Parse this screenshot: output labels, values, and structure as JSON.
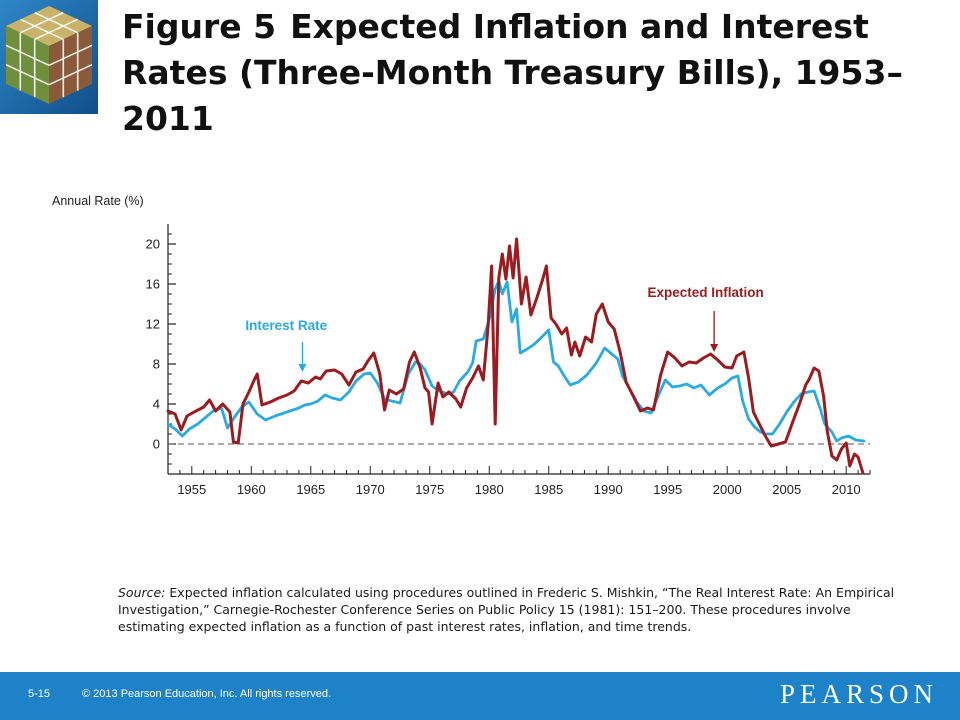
{
  "slide": {
    "title_number": "Figure 5",
    "title_text": "Expected Inflation and Interest Rates (Three-Month Treasury Bills), 1953–2011",
    "source_label": "Source:",
    "source_text": "Expected inflation calculated using procedures outlined in Frederic S. Mishkin, “The Real Interest Rate: An Empirical Investigation,” Carnegie-Rochester Conference Series on Public Policy 15 (1981): 151–200. These procedures involve estimating expected inflation as a function of past interest rates, inflation, and time trends.",
    "slide_number": "5-15",
    "copyright": "© 2013 Pearson Education, Inc. All rights reserved.",
    "brand": "PEARSON"
  },
  "colors": {
    "interest_rate": "#29abe2",
    "expected_inflation": "#9b1b1f",
    "footer": "#1e82c8",
    "axis": "#222222"
  },
  "chart_data": {
    "type": "line",
    "ylabel": "Annual Rate (%)",
    "ylim": [
      -3,
      22
    ],
    "yticks": [
      0,
      4,
      8,
      12,
      16,
      20
    ],
    "xlim": [
      1953,
      2012
    ],
    "xticks": [
      1955,
      1960,
      1965,
      1970,
      1975,
      1980,
      1985,
      1990,
      1995,
      2000,
      2005,
      2010
    ],
    "grid": false,
    "zero_line": "dashed",
    "series": [
      {
        "name": "Interest Rate",
        "color": "#29abe2",
        "label_pos": [
          1959.5,
          11.4
        ],
        "arrow_from": [
          1964.3,
          10.2
        ],
        "arrow_to": [
          1964.3,
          7.2
        ],
        "points": [
          [
            1953.0,
            2.0
          ],
          [
            1953.6,
            1.5
          ],
          [
            1954.2,
            0.8
          ],
          [
            1954.8,
            1.5
          ],
          [
            1955.5,
            2.0
          ],
          [
            1956.2,
            2.7
          ],
          [
            1956.8,
            3.3
          ],
          [
            1957.5,
            3.6
          ],
          [
            1958.0,
            1.6
          ],
          [
            1958.6,
            2.7
          ],
          [
            1959.2,
            3.7
          ],
          [
            1959.8,
            4.2
          ],
          [
            1960.5,
            3.0
          ],
          [
            1961.2,
            2.4
          ],
          [
            1962.0,
            2.8
          ],
          [
            1963.0,
            3.2
          ],
          [
            1964.0,
            3.6
          ],
          [
            1964.5,
            3.9
          ],
          [
            1965.0,
            4.0
          ],
          [
            1965.6,
            4.3
          ],
          [
            1966.2,
            4.9
          ],
          [
            1966.8,
            4.6
          ],
          [
            1967.5,
            4.4
          ],
          [
            1968.2,
            5.2
          ],
          [
            1968.8,
            6.3
          ],
          [
            1969.5,
            7.0
          ],
          [
            1970.0,
            7.1
          ],
          [
            1970.6,
            6.1
          ],
          [
            1971.2,
            4.5
          ],
          [
            1971.8,
            4.3
          ],
          [
            1972.5,
            4.1
          ],
          [
            1973.2,
            7.0
          ],
          [
            1973.8,
            8.2
          ],
          [
            1974.2,
            8.0
          ],
          [
            1974.6,
            7.4
          ],
          [
            1975.2,
            5.8
          ],
          [
            1975.8,
            5.3
          ],
          [
            1976.5,
            5.0
          ],
          [
            1977.0,
            5.2
          ],
          [
            1977.5,
            6.3
          ],
          [
            1978.2,
            7.2
          ],
          [
            1978.6,
            8.1
          ],
          [
            1978.9,
            10.3
          ],
          [
            1979.5,
            10.5
          ],
          [
            1980.0,
            12.5
          ],
          [
            1980.5,
            15.5
          ],
          [
            1980.8,
            16.3
          ],
          [
            1981.1,
            15.0
          ],
          [
            1981.5,
            16.2
          ],
          [
            1981.9,
            12.2
          ],
          [
            1982.3,
            13.5
          ],
          [
            1982.6,
            9.1
          ],
          [
            1983.2,
            9.5
          ],
          [
            1983.8,
            10.0
          ],
          [
            1984.5,
            10.8
          ],
          [
            1985.0,
            11.4
          ],
          [
            1985.4,
            8.2
          ],
          [
            1985.8,
            7.8
          ],
          [
            1986.3,
            6.8
          ],
          [
            1986.8,
            5.9
          ],
          [
            1987.5,
            6.2
          ],
          [
            1988.2,
            6.9
          ],
          [
            1989.0,
            8.1
          ],
          [
            1989.7,
            9.6
          ],
          [
            1990.3,
            9.0
          ],
          [
            1990.8,
            8.5
          ],
          [
            1991.2,
            6.8
          ],
          [
            1991.8,
            5.5
          ],
          [
            1992.4,
            4.2
          ],
          [
            1993.0,
            3.3
          ],
          [
            1993.6,
            3.1
          ],
          [
            1994.2,
            4.8
          ],
          [
            1994.8,
            6.4
          ],
          [
            1995.4,
            5.7
          ],
          [
            1996.0,
            5.8
          ],
          [
            1996.6,
            6.0
          ],
          [
            1997.2,
            5.6
          ],
          [
            1997.8,
            5.9
          ],
          [
            1998.5,
            4.9
          ],
          [
            1999.2,
            5.6
          ],
          [
            1999.8,
            6.0
          ],
          [
            2000.4,
            6.6
          ],
          [
            2000.9,
            6.8
          ],
          [
            2001.3,
            4.3
          ],
          [
            2001.8,
            2.5
          ],
          [
            2002.3,
            1.7
          ],
          [
            2002.8,
            1.2
          ],
          [
            2003.2,
            1.0
          ],
          [
            2003.8,
            1.0
          ],
          [
            2004.4,
            2.0
          ],
          [
            2005.0,
            3.2
          ],
          [
            2005.6,
            4.2
          ],
          [
            2006.2,
            5.0
          ],
          [
            2006.8,
            5.2
          ],
          [
            2007.3,
            5.3
          ],
          [
            2007.8,
            3.6
          ],
          [
            2008.2,
            2.0
          ],
          [
            2008.8,
            1.2
          ],
          [
            2009.2,
            0.3
          ],
          [
            2009.6,
            0.6
          ],
          [
            2010.2,
            0.8
          ],
          [
            2010.8,
            0.4
          ],
          [
            2011.5,
            0.3
          ]
        ]
      },
      {
        "name": "Expected Inflation",
        "color": "#9b1b1f",
        "label_pos": [
          1993.3,
          14.7
        ],
        "arrow_from": [
          1998.9,
          13.3
        ],
        "arrow_to": [
          1998.9,
          9.2
        ],
        "points": [
          [
            1953.0,
            3.3
          ],
          [
            1953.6,
            3.0
          ],
          [
            1954.1,
            1.4
          ],
          [
            1954.6,
            2.8
          ],
          [
            1955.2,
            3.2
          ],
          [
            1956.0,
            3.7
          ],
          [
            1956.5,
            4.4
          ],
          [
            1957.0,
            3.3
          ],
          [
            1957.6,
            4.0
          ],
          [
            1958.2,
            3.2
          ],
          [
            1958.5,
            0.2
          ],
          [
            1958.9,
            0.1
          ],
          [
            1959.3,
            4.0
          ],
          [
            1959.8,
            5.2
          ],
          [
            1960.2,
            6.3
          ],
          [
            1960.5,
            7.0
          ],
          [
            1960.9,
            3.9
          ],
          [
            1961.6,
            4.2
          ],
          [
            1962.3,
            4.6
          ],
          [
            1963.0,
            4.9
          ],
          [
            1963.6,
            5.3
          ],
          [
            1964.2,
            6.3
          ],
          [
            1964.8,
            6.1
          ],
          [
            1965.4,
            6.7
          ],
          [
            1965.8,
            6.5
          ],
          [
            1966.3,
            7.3
          ],
          [
            1967.0,
            7.4
          ],
          [
            1967.6,
            7.0
          ],
          [
            1968.2,
            5.9
          ],
          [
            1968.8,
            7.2
          ],
          [
            1969.4,
            7.5
          ],
          [
            1969.8,
            8.3
          ],
          [
            1970.3,
            9.1
          ],
          [
            1970.8,
            7.0
          ],
          [
            1971.2,
            3.4
          ],
          [
            1971.6,
            5.4
          ],
          [
            1972.2,
            5.0
          ],
          [
            1972.8,
            5.5
          ],
          [
            1973.3,
            8.2
          ],
          [
            1973.7,
            9.2
          ],
          [
            1974.2,
            7.6
          ],
          [
            1974.6,
            5.6
          ],
          [
            1974.9,
            5.2
          ],
          [
            1975.2,
            2.0
          ],
          [
            1975.7,
            6.1
          ],
          [
            1976.1,
            4.7
          ],
          [
            1976.6,
            5.2
          ],
          [
            1977.2,
            4.5
          ],
          [
            1977.6,
            3.7
          ],
          [
            1978.1,
            5.6
          ],
          [
            1978.6,
            6.6
          ],
          [
            1979.1,
            7.8
          ],
          [
            1979.5,
            6.4
          ],
          [
            1979.9,
            11.8
          ],
          [
            1980.2,
            17.8
          ],
          [
            1980.5,
            2.0
          ],
          [
            1980.8,
            16.6
          ],
          [
            1981.1,
            19.0
          ],
          [
            1981.4,
            16.5
          ],
          [
            1981.7,
            19.8
          ],
          [
            1982.0,
            16.6
          ],
          [
            1982.3,
            20.5
          ],
          [
            1982.7,
            14.0
          ],
          [
            1983.1,
            16.7
          ],
          [
            1983.5,
            12.9
          ],
          [
            1984.0,
            14.6
          ],
          [
            1984.5,
            16.5
          ],
          [
            1984.8,
            17.8
          ],
          [
            1985.2,
            12.6
          ],
          [
            1985.6,
            12.0
          ],
          [
            1986.1,
            11.0
          ],
          [
            1986.5,
            11.6
          ],
          [
            1986.9,
            8.9
          ],
          [
            1987.2,
            10.2
          ],
          [
            1987.6,
            8.8
          ],
          [
            1988.1,
            10.7
          ],
          [
            1988.6,
            10.2
          ],
          [
            1989.0,
            13.0
          ],
          [
            1989.5,
            14.0
          ],
          [
            1990.0,
            12.2
          ],
          [
            1990.5,
            11.5
          ],
          [
            1991.0,
            9.2
          ],
          [
            1991.5,
            6.2
          ],
          [
            1992.1,
            4.8
          ],
          [
            1992.7,
            3.3
          ],
          [
            1993.3,
            3.6
          ],
          [
            1993.8,
            3.4
          ],
          [
            1994.4,
            6.9
          ],
          [
            1995.0,
            9.2
          ],
          [
            1995.6,
            8.6
          ],
          [
            1996.2,
            7.8
          ],
          [
            1996.8,
            8.2
          ],
          [
            1997.4,
            8.1
          ],
          [
            1998.0,
            8.6
          ],
          [
            1998.6,
            9.0
          ],
          [
            1999.2,
            8.4
          ],
          [
            1999.8,
            7.7
          ],
          [
            2000.4,
            7.6
          ],
          [
            2000.8,
            8.8
          ],
          [
            2001.4,
            9.2
          ],
          [
            2001.8,
            6.6
          ],
          [
            2002.2,
            3.2
          ],
          [
            2002.7,
            2.0
          ],
          [
            2003.2,
            0.8
          ],
          [
            2003.7,
            -0.2
          ],
          [
            2004.3,
            0.0
          ],
          [
            2004.9,
            0.2
          ],
          [
            2005.5,
            2.2
          ],
          [
            2006.1,
            4.1
          ],
          [
            2006.6,
            5.9
          ],
          [
            2006.9,
            6.5
          ],
          [
            2007.3,
            7.6
          ],
          [
            2007.7,
            7.3
          ],
          [
            2008.1,
            4.8
          ],
          [
            2008.4,
            1.3
          ],
          [
            2008.8,
            -1.2
          ],
          [
            2009.2,
            -1.6
          ],
          [
            2009.6,
            -0.5
          ],
          [
            2010.0,
            0.1
          ],
          [
            2010.3,
            -2.2
          ],
          [
            2010.7,
            -1.0
          ],
          [
            2011.0,
            -1.3
          ],
          [
            2011.4,
            -2.9
          ]
        ]
      }
    ]
  }
}
